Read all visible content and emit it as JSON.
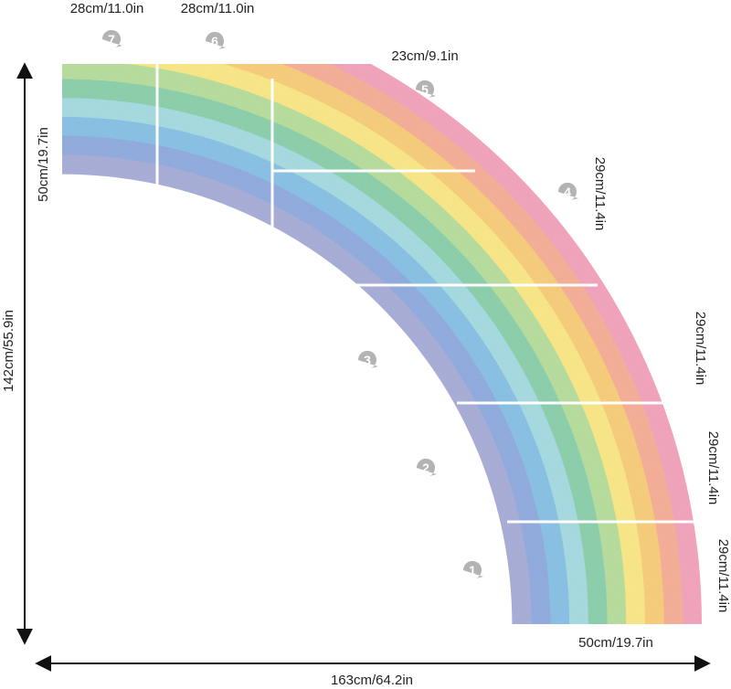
{
  "diagram": {
    "colors": {
      "bands": [
        "#f4a6bd",
        "#f7b19a",
        "#f9cf7e",
        "#fbe98a",
        "#b9dfa0",
        "#8fd1ae",
        "#a9dde3",
        "#8cc3e6",
        "#93aee0",
        "#aab0d9"
      ],
      "badge": "#b3b3b3",
      "arrow": "#111111",
      "divider": "#ffffff"
    },
    "pieces": [
      {
        "number": "1",
        "label": "29cm/11.4in"
      },
      {
        "number": "2",
        "label": "29cm/11.4in"
      },
      {
        "number": "3",
        "label": "29cm/11.4in"
      },
      {
        "number": "4",
        "label": "29cm/11.4in"
      },
      {
        "number": "5",
        "label": "23cm/9.1in"
      },
      {
        "number": "6",
        "label": "28cm/11.0in"
      },
      {
        "number": "7",
        "label": "28cm/11.0in"
      }
    ],
    "band_width_top": "50cm/19.7in",
    "band_width_bottom": "50cm/19.7in",
    "total_height": "142cm/55.9in",
    "total_width": "163cm/64.2in"
  }
}
